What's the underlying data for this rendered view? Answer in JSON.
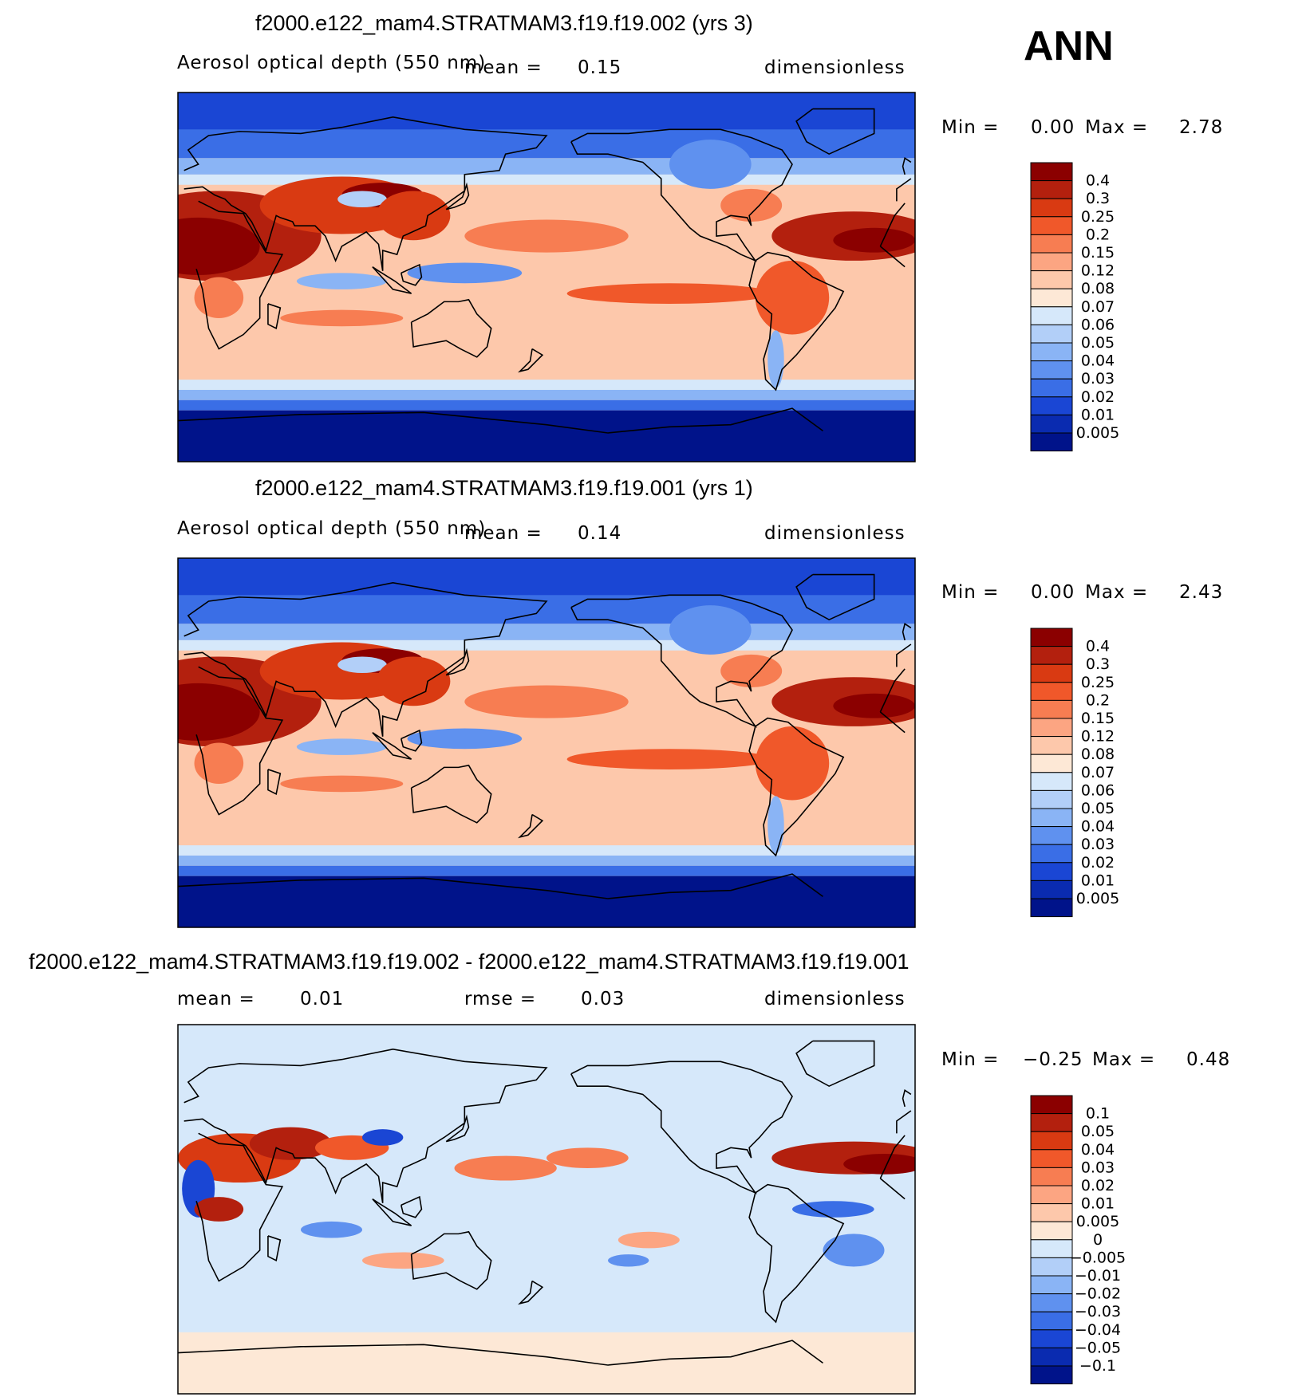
{
  "season": "ANN",
  "panels": [
    {
      "title": "f2000.e122_mam4.STRATMAM3.f19.f19.002 (yrs 3)",
      "variable": "Aerosol optical depth (550 nm)",
      "mean_label": "mean =",
      "mean_value": "0.15",
      "units": "dimensionless",
      "min_label": "Min =",
      "min_value": "0.00",
      "max_label": "Max =",
      "max_value": "2.78"
    },
    {
      "title": "f2000.e122_mam4.STRATMAM3.f19.f19.001 (yrs 1)",
      "variable": "Aerosol optical depth (550 nm)",
      "mean_label": "mean =",
      "mean_value": "0.14",
      "units": "dimensionless",
      "min_label": "Min =",
      "min_value": "0.00",
      "max_label": "Max =",
      "max_value": "2.43"
    },
    {
      "title": "f2000.e122_mam4.STRATMAM3.f19.f19.002 - f2000.e122_mam4.STRATMAM3.f19.f19.001",
      "mean_label": "mean =",
      "mean_value": "0.01",
      "rmse_label": "rmse =",
      "rmse_value": "0.03",
      "units": "dimensionless",
      "min_label": "Min =",
      "min_value": "−0.25",
      "max_label": "Max =",
      "max_value": "0.48"
    }
  ],
  "chart_data": [
    {
      "type": "heatmap",
      "title": "f2000.e122_mam4.STRATMAM3.f19.f19.002 (yrs 3)",
      "field": "Aerosol optical depth (550 nm)",
      "units": "dimensionless",
      "mean": 0.15,
      "min": 0.0,
      "max": 2.78,
      "colorbar": {
        "levels": [
          "0.4",
          "0.3",
          "0.25",
          "0.2",
          "0.15",
          "0.12",
          "0.08",
          "0.07",
          "0.06",
          "0.05",
          "0.04",
          "0.03",
          "0.02",
          "0.01",
          "0.005"
        ],
        "colors": [
          "#8b0000",
          "#b3200e",
          "#d93a12",
          "#f0582a",
          "#f77d52",
          "#fca582",
          "#fdc8ab",
          "#fde8d6",
          "#d6e8fa",
          "#b2cff8",
          "#8ab4f5",
          "#5f91ef",
          "#3a6ee6",
          "#1a46d4",
          "#0a2bb0",
          "#00138a"
        ]
      }
    },
    {
      "type": "heatmap",
      "title": "f2000.e122_mam4.STRATMAM3.f19.f19.001 (yrs 1)",
      "field": "Aerosol optical depth (550 nm)",
      "units": "dimensionless",
      "mean": 0.14,
      "min": 0.0,
      "max": 2.43,
      "colorbar": {
        "levels": [
          "0.4",
          "0.3",
          "0.25",
          "0.2",
          "0.15",
          "0.12",
          "0.08",
          "0.07",
          "0.06",
          "0.05",
          "0.04",
          "0.03",
          "0.02",
          "0.01",
          "0.005"
        ],
        "colors": [
          "#8b0000",
          "#b3200e",
          "#d93a12",
          "#f0582a",
          "#f77d52",
          "#fca582",
          "#fdc8ab",
          "#fde8d6",
          "#d6e8fa",
          "#b2cff8",
          "#8ab4f5",
          "#5f91ef",
          "#3a6ee6",
          "#1a46d4",
          "#0a2bb0",
          "#00138a"
        ]
      }
    },
    {
      "type": "heatmap",
      "title": "f2000.e122_mam4.STRATMAM3.f19.f19.002 - f2000.e122_mam4.STRATMAM3.f19.f19.001",
      "units": "dimensionless",
      "mean": 0.01,
      "rmse": 0.03,
      "min": -0.25,
      "max": 0.48,
      "colorbar": {
        "levels": [
          "0.1",
          "0.05",
          "0.04",
          "0.03",
          "0.02",
          "0.01",
          "0.005",
          "0",
          "−0.005",
          "−0.01",
          "−0.02",
          "−0.03",
          "−0.04",
          "−0.05",
          "−0.1"
        ],
        "colors": [
          "#8b0000",
          "#b3200e",
          "#d93a12",
          "#f0582a",
          "#f77d52",
          "#fca582",
          "#fdc8ab",
          "#fde8d6",
          "#d6e8fa",
          "#b2cff8",
          "#8ab4f5",
          "#5f91ef",
          "#3a6ee6",
          "#1a46d4",
          "#0a2bb0",
          "#00138a"
        ]
      }
    }
  ]
}
